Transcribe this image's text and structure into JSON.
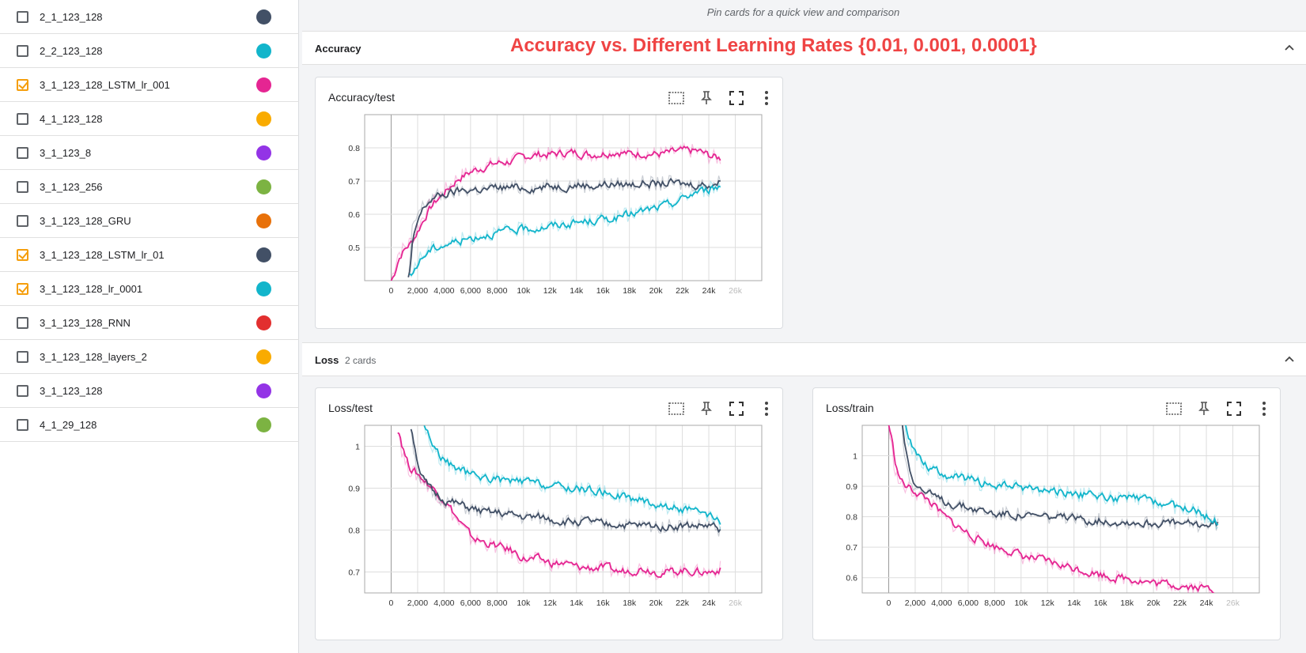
{
  "sidebar": {
    "runs": [
      {
        "label": "2_1_123_128",
        "checked": false,
        "color": "#425066"
      },
      {
        "label": "2_2_123_128",
        "checked": false,
        "color": "#12b5cb"
      },
      {
        "label": "3_1_123_128_LSTM_lr_001",
        "checked": true,
        "color": "#e52592"
      },
      {
        "label": "4_1_123_128",
        "checked": false,
        "color": "#f9ab00"
      },
      {
        "label": "3_1_123_8",
        "checked": false,
        "color": "#9334e6"
      },
      {
        "label": "3_1_123_256",
        "checked": false,
        "color": "#7cb342"
      },
      {
        "label": "3_1_123_128_GRU",
        "checked": false,
        "color": "#e8710a"
      },
      {
        "label": "3_1_123_128_LSTM_lr_01",
        "checked": true,
        "color": "#425066"
      },
      {
        "label": "3_1_123_128_lr_0001",
        "checked": true,
        "color": "#12b5cb"
      },
      {
        "label": "3_1_123_128_RNN",
        "checked": false,
        "color": "#e22f2f"
      },
      {
        "label": "3_1_123_128_layers_2",
        "checked": false,
        "color": "#f9ab00"
      },
      {
        "label": "3_1_123_128",
        "checked": false,
        "color": "#9334e6"
      },
      {
        "label": "4_1_29_128",
        "checked": false,
        "color": "#7cb342"
      }
    ]
  },
  "main": {
    "pin_hint": "Pin cards for a quick view and comparison",
    "annotation": "Accuracy vs. Different Learning Rates {0.01, 0.001, 0.0001}",
    "accuracy_group": {
      "title": "Accuracy"
    },
    "loss_group": {
      "title": "Loss",
      "count": "2 cards"
    }
  },
  "icons": [
    "fit-domain-icon",
    "pin-icon",
    "fullscreen-icon",
    "more-vert-icon",
    "chevron-up-icon",
    "checkbox-check-icon"
  ],
  "chart_data": [
    {
      "type": "line",
      "title": "Accuracy/test",
      "x_ticks": [
        "0",
        "2,000",
        "4,000",
        "6,000",
        "8,000",
        "10k",
        "12k",
        "14k",
        "16k",
        "18k",
        "20k",
        "22k",
        "24k",
        "26k"
      ],
      "y_ticks": [
        "0.5",
        "0.6",
        "0.7",
        "0.8"
      ],
      "xlim": [
        -2000,
        28000
      ],
      "ylim": [
        0.4,
        0.9
      ],
      "grid": true,
      "series": [
        {
          "name": "3_1_123_128_LSTM_lr_001",
          "color": "#e52592",
          "x": [
            0,
            500,
            1000,
            1500,
            2000,
            2500,
            3000,
            4000,
            5000,
            6000,
            7000,
            8000,
            9000,
            10000,
            11000,
            12000,
            13000,
            14000,
            15000,
            16000,
            17000,
            18000,
            19000,
            20000,
            21000,
            22000,
            23000,
            24000,
            25000
          ],
          "y": [
            0.4,
            0.48,
            0.5,
            0.52,
            0.56,
            0.6,
            0.63,
            0.67,
            0.71,
            0.73,
            0.745,
            0.755,
            0.76,
            0.775,
            0.78,
            0.78,
            0.785,
            0.785,
            0.78,
            0.785,
            0.79,
            0.78,
            0.785,
            0.78,
            0.785,
            0.79,
            0.79,
            0.775,
            0.765
          ]
        },
        {
          "name": "3_1_123_128_LSTM_lr_01",
          "color": "#425066",
          "x": [
            1300,
            1600,
            2000,
            2500,
            3000,
            4000,
            5000,
            6000,
            7000,
            8000,
            9000,
            10000,
            11000,
            12000,
            13000,
            14000,
            15000,
            16000,
            17000,
            18000,
            19000,
            20000,
            21000,
            22000,
            23000,
            24000,
            25000
          ],
          "y": [
            0.4,
            0.55,
            0.6,
            0.63,
            0.65,
            0.66,
            0.67,
            0.675,
            0.675,
            0.68,
            0.68,
            0.68,
            0.68,
            0.685,
            0.685,
            0.69,
            0.685,
            0.69,
            0.69,
            0.69,
            0.695,
            0.69,
            0.695,
            0.69,
            0.69,
            0.69,
            0.7
          ]
        },
        {
          "name": "3_1_123_128_lr_0001",
          "color": "#12b5cb",
          "x": [
            1400,
            1800,
            2200,
            2700,
            3200,
            4000,
            5000,
            6000,
            7000,
            8000,
            9000,
            10000,
            11000,
            12000,
            13000,
            14000,
            15000,
            16000,
            17000,
            18000,
            19000,
            20000,
            21000,
            22000,
            23000,
            24000,
            25000
          ],
          "y": [
            0.4,
            0.45,
            0.47,
            0.49,
            0.5,
            0.51,
            0.52,
            0.53,
            0.54,
            0.545,
            0.55,
            0.555,
            0.56,
            0.565,
            0.57,
            0.575,
            0.58,
            0.585,
            0.59,
            0.6,
            0.61,
            0.62,
            0.63,
            0.65,
            0.67,
            0.675,
            0.69
          ]
        }
      ]
    },
    {
      "type": "line",
      "title": "Loss/test",
      "x_ticks": [
        "0",
        "2,000",
        "4,000",
        "6,000",
        "8,000",
        "10k",
        "12k",
        "14k",
        "16k",
        "18k",
        "20k",
        "22k",
        "24k",
        "26k"
      ],
      "y_ticks": [
        "0.7",
        "0.8",
        "0.9",
        "1"
      ],
      "xlim": [
        -2000,
        28000
      ],
      "ylim": [
        0.65,
        1.05
      ],
      "grid": true,
      "series": [
        {
          "name": "3_1_123_128_LSTM_lr_001",
          "color": "#e52592",
          "x": [
            500,
            800,
            1200,
            2000,
            3000,
            4000,
            5000,
            6000,
            7000,
            8000,
            9000,
            10000,
            11000,
            12000,
            13000,
            14000,
            15000,
            16000,
            17000,
            18000,
            19000,
            20000,
            21000,
            22000,
            23000,
            24000,
            25000
          ],
          "y": [
            1.05,
            0.99,
            0.95,
            0.93,
            0.9,
            0.87,
            0.82,
            0.78,
            0.77,
            0.76,
            0.75,
            0.73,
            0.73,
            0.72,
            0.72,
            0.71,
            0.71,
            0.71,
            0.7,
            0.705,
            0.71,
            0.7,
            0.7,
            0.705,
            0.7,
            0.7,
            0.71
          ]
        },
        {
          "name": "3_1_123_128_LSTM_lr_01",
          "color": "#425066",
          "x": [
            1500,
            1800,
            2200,
            3000,
            4000,
            5000,
            6000,
            7000,
            8000,
            9000,
            10000,
            11000,
            12000,
            13000,
            14000,
            15000,
            16000,
            17000,
            18000,
            19000,
            20000,
            21000,
            22000,
            23000,
            24000,
            25000
          ],
          "y": [
            1.05,
            0.97,
            0.92,
            0.89,
            0.87,
            0.86,
            0.85,
            0.84,
            0.84,
            0.835,
            0.83,
            0.83,
            0.825,
            0.82,
            0.82,
            0.82,
            0.81,
            0.815,
            0.81,
            0.81,
            0.81,
            0.81,
            0.81,
            0.81,
            0.81,
            0.8
          ]
        },
        {
          "name": "3_1_123_128_lr_0001",
          "color": "#12b5cb",
          "x": [
            2500,
            3000,
            4000,
            5000,
            6000,
            7000,
            8000,
            9000,
            10000,
            11000,
            12000,
            13000,
            14000,
            15000,
            16000,
            17000,
            18000,
            19000,
            20000,
            21000,
            22000,
            23000,
            24000,
            25000
          ],
          "y": [
            1.05,
            1.0,
            0.96,
            0.945,
            0.93,
            0.925,
            0.92,
            0.915,
            0.915,
            0.91,
            0.905,
            0.9,
            0.9,
            0.895,
            0.89,
            0.885,
            0.875,
            0.87,
            0.86,
            0.855,
            0.85,
            0.84,
            0.83,
            0.81
          ]
        }
      ]
    },
    {
      "type": "line",
      "title": "Loss/train",
      "x_ticks": [
        "0",
        "2,000",
        "4,000",
        "6,000",
        "8,000",
        "10k",
        "12k",
        "14k",
        "16k",
        "18k",
        "20k",
        "22k",
        "24k",
        "26k"
      ],
      "y_ticks": [
        "0.6",
        "0.7",
        "0.8",
        "0.9",
        "1"
      ],
      "xlim": [
        -2000,
        28000
      ],
      "ylim": [
        0.55,
        1.1
      ],
      "grid": true,
      "series": [
        {
          "name": "3_1_123_128_LSTM_lr_001",
          "color": "#e52592",
          "x": [
            0,
            300,
            600,
            1000,
            2000,
            3000,
            4000,
            5000,
            6000,
            7000,
            8000,
            9000,
            10000,
            11000,
            12000,
            13000,
            14000,
            15000,
            16000,
            17000,
            18000,
            19000,
            20000,
            21000,
            22000,
            23000,
            24000,
            25000
          ],
          "y": [
            1.1,
            1.0,
            0.93,
            0.9,
            0.88,
            0.85,
            0.8,
            0.77,
            0.74,
            0.72,
            0.7,
            0.69,
            0.67,
            0.66,
            0.65,
            0.64,
            0.63,
            0.62,
            0.61,
            0.6,
            0.6,
            0.59,
            0.58,
            0.58,
            0.575,
            0.57,
            0.565,
            0.56
          ]
        },
        {
          "name": "3_1_123_128_LSTM_lr_01",
          "color": "#425066",
          "x": [
            1000,
            1200,
            1600,
            2000,
            3000,
            4000,
            5000,
            6000,
            7000,
            8000,
            9000,
            10000,
            11000,
            12000,
            13000,
            14000,
            15000,
            16000,
            17000,
            18000,
            19000,
            20000,
            21000,
            22000,
            23000,
            24000,
            25000
          ],
          "y": [
            1.1,
            1.0,
            0.93,
            0.9,
            0.87,
            0.85,
            0.84,
            0.83,
            0.82,
            0.81,
            0.81,
            0.805,
            0.8,
            0.8,
            0.795,
            0.79,
            0.79,
            0.79,
            0.785,
            0.785,
            0.78,
            0.78,
            0.78,
            0.775,
            0.775,
            0.775,
            0.78
          ]
        },
        {
          "name": "3_1_123_128_lr_0001",
          "color": "#12b5cb",
          "x": [
            1200,
            1500,
            2000,
            3000,
            4000,
            5000,
            6000,
            7000,
            8000,
            9000,
            10000,
            11000,
            12000,
            13000,
            14000,
            15000,
            16000,
            17000,
            18000,
            19000,
            20000,
            21000,
            22000,
            23000,
            24000,
            25000
          ],
          "y": [
            1.1,
            1.05,
            1.0,
            0.96,
            0.94,
            0.93,
            0.92,
            0.91,
            0.9,
            0.9,
            0.895,
            0.89,
            0.885,
            0.88,
            0.875,
            0.87,
            0.865,
            0.86,
            0.86,
            0.855,
            0.85,
            0.84,
            0.83,
            0.82,
            0.8,
            0.78
          ]
        }
      ]
    }
  ]
}
